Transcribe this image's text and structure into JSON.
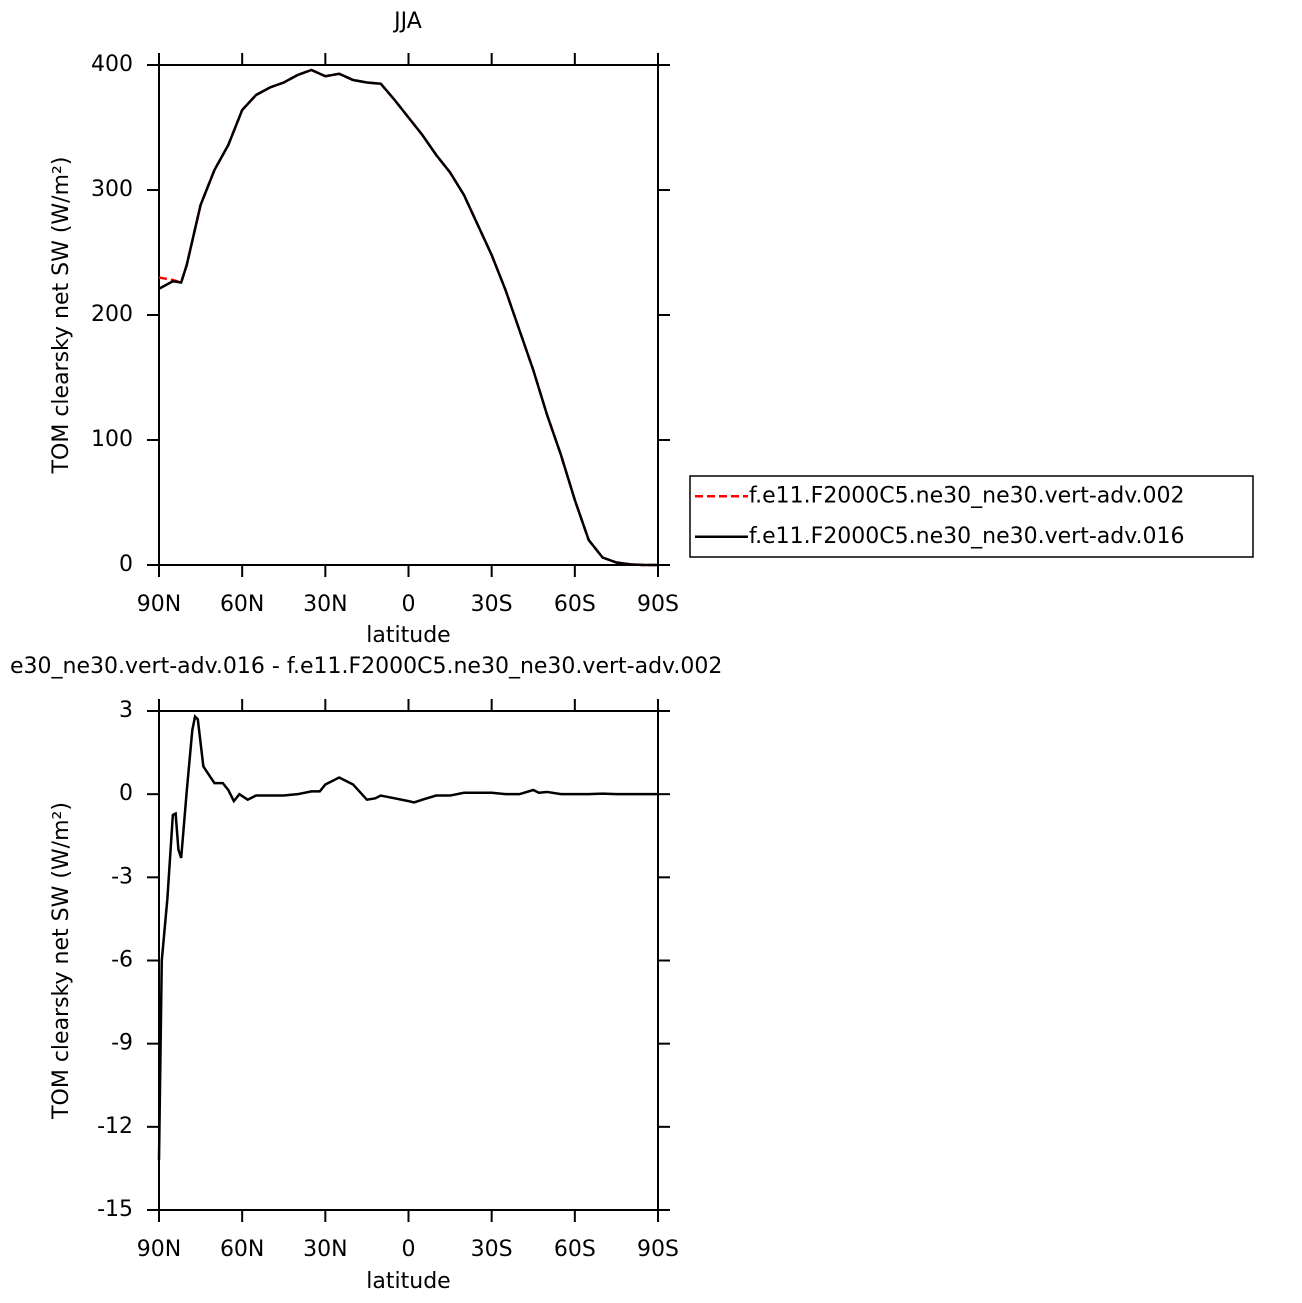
{
  "chart_data": [
    {
      "type": "line",
      "title": "JJA",
      "x_label": "latitude",
      "y_label": "TOM clearsky net SW (W/m²)",
      "xlim": [
        90,
        -90
      ],
      "xticks": [
        {
          "value": 90,
          "label": "90N"
        },
        {
          "value": 60,
          "label": "60N"
        },
        {
          "value": 30,
          "label": "30N"
        },
        0,
        {
          "value": -30,
          "label": "30S"
        },
        {
          "value": -60,
          "label": "60S"
        },
        {
          "value": -90,
          "label": "90S"
        }
      ],
      "ylim": [
        0,
        400
      ],
      "yticks": [
        0,
        100,
        200,
        300,
        400
      ],
      "legend": "right",
      "x": [
        90,
        85,
        82,
        80,
        75,
        70,
        65,
        60,
        55,
        50,
        45,
        40,
        35,
        30,
        25,
        20,
        15,
        10,
        5,
        0,
        -5,
        -10,
        -15,
        -20,
        -25,
        -30,
        -35,
        -40,
        -45,
        -50,
        -55,
        -60,
        -65,
        -70,
        -75,
        -80,
        -85,
        -90
      ],
      "series": [
        {
          "name": "f.e11.F2000C5.ne30_ne30.vert-adv.002",
          "color": "#ff0000",
          "line_style": "dashed",
          "values": [
            230,
            228,
            226,
            240,
            288,
            316,
            336,
            364,
            376,
            382,
            386,
            392,
            396,
            391,
            393,
            388,
            386,
            385,
            372,
            358,
            344,
            328,
            314,
            296,
            272,
            248,
            220,
            188,
            156,
            120,
            88,
            52,
            20,
            6,
            2,
            0.5,
            0,
            0
          ]
        },
        {
          "name": "f.e11.F2000C5.ne30_ne30.vert-adv.016",
          "color": "#000000",
          "line_style": "solid",
          "values": [
            221,
            227,
            226,
            240,
            288,
            316,
            336,
            364,
            376,
            382,
            386,
            392,
            396,
            391,
            393,
            388,
            386,
            385,
            372,
            358,
            344,
            328,
            314,
            296,
            272,
            248,
            220,
            188,
            156,
            120,
            88,
            52,
            20,
            6,
            2,
            0.5,
            0,
            0
          ]
        }
      ]
    },
    {
      "type": "line",
      "title": "e30_ne30.vert-adv.016 - f.e11.F2000C5.ne30_ne30.vert-adv.002",
      "x_label": "latitude",
      "y_label": "TOM clearsky net SW (W/m²)",
      "xlim": [
        90,
        -90
      ],
      "xticks": [
        {
          "value": 90,
          "label": "90N"
        },
        {
          "value": 60,
          "label": "60N"
        },
        {
          "value": 30,
          "label": "30N"
        },
        0,
        {
          "value": -30,
          "label": "30S"
        },
        {
          "value": -60,
          "label": "60S"
        },
        {
          "value": -90,
          "label": "90S"
        }
      ],
      "ylim": [
        -15,
        3
      ],
      "yticks": [
        -15,
        -12,
        -9,
        -6,
        -3,
        0,
        3
      ],
      "x": [
        90,
        89,
        87,
        85,
        84,
        83,
        82,
        80,
        78,
        77,
        76,
        74,
        72,
        70,
        67,
        65,
        63,
        61,
        58,
        55,
        50,
        45,
        40,
        35,
        32,
        30,
        25,
        20,
        15,
        12,
        10,
        5,
        0,
        -2,
        -5,
        -10,
        -15,
        -20,
        -25,
        -30,
        -35,
        -40,
        -45,
        -47,
        -50,
        -55,
        -60,
        -65,
        -70,
        -75,
        -80,
        -85,
        -90
      ],
      "series": [
        {
          "color": "#000000",
          "line_style": "solid",
          "values": [
            -13.2,
            -6,
            -3.8,
            -0.75,
            -0.7,
            -2.0,
            -2.3,
            0.1,
            2.3,
            2.8,
            2.7,
            1.0,
            0.7,
            0.4,
            0.4,
            0.15,
            -0.25,
            0,
            -0.2,
            -0.05,
            -0.05,
            -0.05,
            0,
            0.1,
            0.1,
            0.35,
            0.6,
            0.35,
            -0.2,
            -0.15,
            -0.05,
            -0.15,
            -0.25,
            -0.3,
            -0.2,
            -0.05,
            -0.05,
            0.05,
            0.05,
            0.05,
            0,
            0,
            0.15,
            0.05,
            0.08,
            0,
            0,
            0,
            0.02,
            0,
            0,
            0,
            0
          ]
        }
      ]
    }
  ]
}
